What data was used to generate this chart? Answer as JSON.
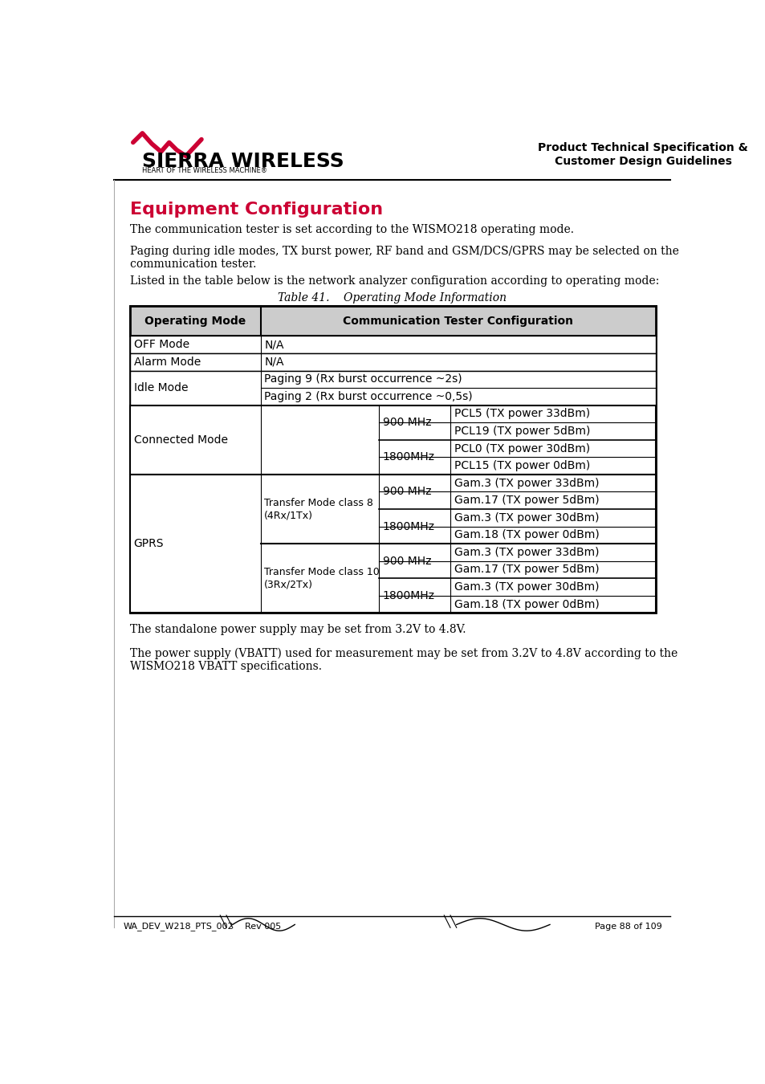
{
  "page_title": "Product Technical Specification &\nCustomer Design Guidelines",
  "section_title": "Equipment Configuration",
  "section_title_color": "#CC0033",
  "para1": "The communication tester is set according to the WISMO218 operating mode.",
  "para2": "Paging during idle modes, TX burst power, RF band and GSM/DCS/GPRS may be selected on the\ncommunication tester.",
  "para3": "Listed in the table below is the network analyzer configuration according to operating mode:",
  "table_caption": "Table 41.    Operating Mode Information",
  "para4": "The standalone power supply may be set from 3.2V to 4.8V.",
  "para5": "The power supply (VBATT) used for measurement may be set from 3.2V to 4.8V according to the\nWISMO218 VBATT specifications.",
  "footer_left": "WA_DEV_W218_PTS_002",
  "footer_center": "Rev 005",
  "footer_right": "Page 88 of 109",
  "logo_text": "SIERRA WIRELESS",
  "logo_sub": "HEART OF THE WIRELESS MACHINE®"
}
